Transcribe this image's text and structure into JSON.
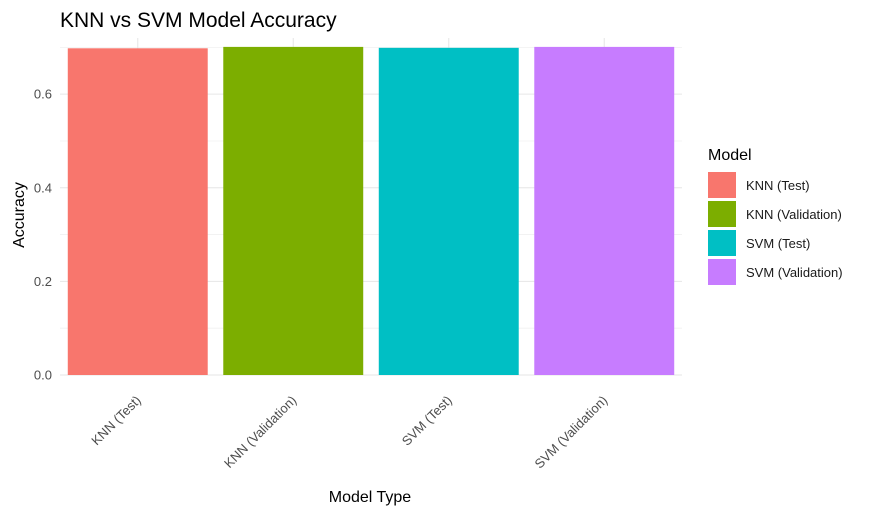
{
  "chart_data": {
    "type": "bar",
    "title": "KNN vs SVM Model Accuracy",
    "xlabel": "Model Type",
    "ylabel": "Accuracy",
    "categories": [
      "KNN (Test)",
      "KNN (Validation)",
      "SVM (Test)",
      "SVM (Validation)"
    ],
    "values": [
      0.698,
      0.701,
      0.699,
      0.701
    ],
    "colors": [
      "#F8766D",
      "#7CAE00",
      "#00BFC4",
      "#C77CFF"
    ],
    "ylim": [
      0,
      0.72
    ],
    "y_ticks": [
      0.0,
      0.2,
      0.4,
      0.6
    ],
    "y_tick_labels": [
      "0.0",
      "0.2",
      "0.4",
      "0.6"
    ],
    "grid": true,
    "legend": {
      "title": "Model",
      "position": "right",
      "entries": [
        "KNN (Test)",
        "KNN (Validation)",
        "SVM (Test)",
        "SVM (Validation)"
      ]
    }
  }
}
